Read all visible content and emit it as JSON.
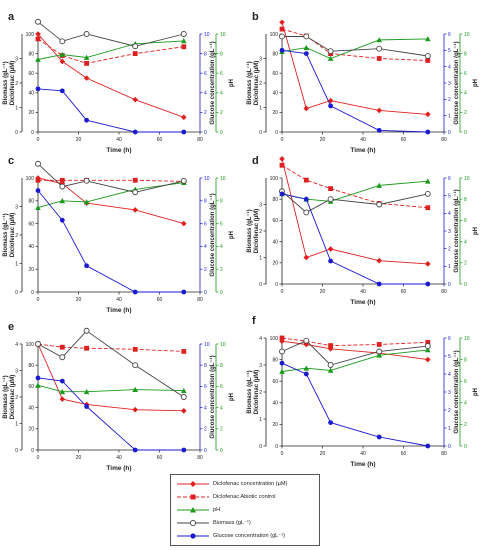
{
  "chart_data": [
    {
      "panel": "a",
      "type": "line",
      "xlabel": "Time (h)",
      "ylabel_left_outer": "Biomass (gL⁻¹)",
      "ylabel_left_inner": "Diclofenac (µM)",
      "ylabel_right_inner": "Glucose concentration (gL⁻¹)",
      "ylabel_right_outer": "pH",
      "xlim": [
        0,
        80
      ],
      "xticks": [
        "0",
        "20",
        "40",
        "60",
        "80"
      ],
      "ylim_biomass": [
        0,
        4
      ],
      "ylim_diclofenac": [
        0,
        100
      ],
      "ylim_glucose": [
        0,
        10
      ],
      "ylim_ph": [
        0,
        10
      ],
      "ticks_biomass": [
        "0",
        "1",
        "2",
        "3"
      ],
      "ticks_diclofenac": [
        "0",
        "20",
        "40",
        "60",
        "80",
        "100"
      ],
      "ticks_glucose": [
        "0",
        "2",
        "4",
        "6",
        "8",
        "10"
      ],
      "ticks_ph": [
        "0",
        "2",
        "4",
        "6",
        "8",
        "10"
      ],
      "series": [
        {
          "name": "Diclofenac concentration (µM)",
          "axis": "diclofenac",
          "x": [
            0,
            12,
            24,
            48,
            72
          ],
          "y": [
            100,
            72,
            55,
            33,
            15
          ]
        },
        {
          "name": "Diclofenac Abiotic control",
          "axis": "diclofenac",
          "x": [
            0,
            12,
            24,
            48,
            72
          ],
          "y": [
            95,
            78,
            70,
            80,
            87
          ]
        },
        {
          "name": "pH",
          "axis": "ph",
          "x": [
            0,
            12,
            24,
            48,
            72
          ],
          "y": [
            7.4,
            7.9,
            7.6,
            9.0,
            9.3
          ]
        },
        {
          "name": "Biomass (gL⁻¹)",
          "axis": "biomass",
          "x": [
            0,
            12,
            24,
            48,
            72
          ],
          "y": [
            4.5,
            3.7,
            4.0,
            3.5,
            4.0
          ]
        },
        {
          "name": "Glucose concentration (gL⁻¹)",
          "axis": "glucose",
          "x": [
            0,
            12,
            24,
            48,
            72
          ],
          "y": [
            4.4,
            4.2,
            1.2,
            0,
            0
          ]
        }
      ]
    },
    {
      "panel": "b",
      "type": "line",
      "xlabel": "Time (h)",
      "ylabel_left_outer": "Biomass (gL⁻¹)",
      "ylabel_left_inner": "Diclofenac (µM)",
      "ylabel_right_inner": "Glucose concentration (gL⁻¹)",
      "ylabel_right_outer": "pH",
      "xlim": [
        0,
        80
      ],
      "xticks": [
        "0",
        "20",
        "40",
        "60",
        "80"
      ],
      "ylim_biomass": [
        0,
        4
      ],
      "ylim_diclofenac": [
        0,
        100
      ],
      "ylim_glucose": [
        0,
        6
      ],
      "ylim_ph": [
        0,
        10
      ],
      "ticks_biomass": [
        "0",
        "1",
        "2",
        "3"
      ],
      "ticks_diclofenac": [
        "0",
        "20",
        "40",
        "60",
        "80",
        "100"
      ],
      "ticks_glucose": [
        "0",
        "1",
        "2",
        "3",
        "4",
        "5",
        "6"
      ],
      "ticks_ph": [
        "0",
        "2",
        "4",
        "6",
        "8",
        "10"
      ],
      "series": [
        {
          "name": "Diclofenac concentration (µM)",
          "axis": "diclofenac",
          "x": [
            0,
            12,
            24,
            48,
            72
          ],
          "y": [
            112,
            24,
            32,
            22,
            18
          ]
        },
        {
          "name": "Diclofenac Abiotic control",
          "axis": "diclofenac",
          "x": [
            0,
            12,
            24,
            48,
            72
          ],
          "y": [
            105,
            98,
            80,
            75,
            73
          ]
        },
        {
          "name": "pH",
          "axis": "ph",
          "x": [
            0,
            12,
            24,
            48,
            72
          ],
          "y": [
            8.2,
            8.6,
            7.5,
            9.4,
            9.5
          ]
        },
        {
          "name": "Biomass (gL⁻¹)",
          "axis": "biomass",
          "x": [
            0,
            12,
            24,
            48,
            72
          ],
          "y": [
            3.9,
            3.9,
            3.3,
            3.4,
            3.1
          ]
        },
        {
          "name": "Glucose concentration (gL⁻¹)",
          "axis": "glucose",
          "x": [
            0,
            12,
            24,
            48,
            72
          ],
          "y": [
            5.0,
            4.8,
            1.6,
            0.1,
            0
          ]
        }
      ]
    },
    {
      "panel": "c",
      "type": "line",
      "xlabel": "Time (h)",
      "ylabel_left_outer": "Biomass (gL⁻¹)",
      "ylabel_left_inner": "Diclofenac (µM)",
      "ylabel_right_inner": "Glucose concentration (gL⁻¹)",
      "ylabel_right_outer": "pH",
      "xlim": [
        0,
        80
      ],
      "xticks": [
        "0",
        "20",
        "40",
        "60",
        "80"
      ],
      "ylim_biomass": [
        0,
        4
      ],
      "ylim_diclofenac": [
        0,
        100
      ],
      "ylim_glucose": [
        0,
        10
      ],
      "ylim_ph": [
        0,
        10
      ],
      "ticks_biomass": [
        "0",
        "1",
        "2",
        "3"
      ],
      "ticks_diclofenac": [
        "0",
        "20",
        "40",
        "60",
        "80",
        "100"
      ],
      "ticks_glucose": [
        "0",
        "2",
        "4",
        "6",
        "8",
        "10"
      ],
      "ticks_ph": [
        "0",
        "2",
        "4",
        "6",
        "8",
        "10"
      ],
      "series": [
        {
          "name": "Diclofenac concentration (µM)",
          "axis": "diclofenac",
          "x": [
            0,
            12,
            24,
            48,
            72
          ],
          "y": [
            100,
            95,
            78,
            72,
            60
          ]
        },
        {
          "name": "Diclofenac Abiotic control",
          "axis": "diclofenac",
          "x": [
            0,
            12,
            24,
            48,
            72
          ],
          "y": [
            98,
            98,
            98,
            98,
            97
          ]
        },
        {
          "name": "pH",
          "axis": "ph",
          "x": [
            0,
            12,
            24,
            48,
            72
          ],
          "y": [
            7.4,
            8.0,
            7.9,
            9.0,
            9.6
          ]
        },
        {
          "name": "Biomass (gL⁻¹)",
          "axis": "biomass",
          "x": [
            0,
            12,
            24,
            48,
            72
          ],
          "y": [
            4.5,
            3.7,
            3.9,
            3.5,
            3.9
          ]
        },
        {
          "name": "Glucose concentration (gL⁻¹)",
          "axis": "glucose",
          "x": [
            0,
            12,
            24,
            48,
            72
          ],
          "y": [
            8.9,
            6.3,
            2.3,
            0,
            0
          ]
        }
      ]
    },
    {
      "panel": "d",
      "type": "line",
      "xlabel": "Time (h)",
      "ylabel_left_outer": "Biomass (gL⁻¹)",
      "ylabel_left_inner": "Diclofenac (µM)",
      "ylabel_right_inner": "Glucose concentration (gL⁻¹)",
      "ylabel_right_outer": "pH",
      "xlim": [
        0,
        80
      ],
      "xticks": [
        "0",
        "20",
        "40",
        "60",
        "80"
      ],
      "ylim_biomass": [
        0,
        4
      ],
      "ylim_diclofenac": [
        0,
        100
      ],
      "ylim_glucose": [
        0,
        6
      ],
      "ylim_ph": [
        0,
        10
      ],
      "ticks_biomass": [
        "0",
        "1",
        "2",
        "3"
      ],
      "ticks_diclofenac": [
        "0",
        "20",
        "40",
        "60",
        "80",
        "100"
      ],
      "ticks_glucose": [
        "0",
        "1",
        "2",
        "3",
        "4",
        "5",
        "6"
      ],
      "ticks_ph": [
        "0",
        "2",
        "4",
        "6",
        "8",
        "10"
      ],
      "series": [
        {
          "name": "Diclofenac concentration (µM)",
          "axis": "diclofenac",
          "x": [
            0,
            12,
            24,
            48,
            72
          ],
          "y": [
            118,
            25,
            33,
            22,
            19
          ]
        },
        {
          "name": "Diclofenac Abiotic control",
          "axis": "diclofenac",
          "x": [
            0,
            12,
            24,
            48,
            72
          ],
          "y": [
            112,
            98,
            90,
            76,
            72
          ]
        },
        {
          "name": "pH",
          "axis": "ph",
          "x": [
            0,
            12,
            24,
            48,
            72
          ],
          "y": [
            8.5,
            8.0,
            7.8,
            9.3,
            9.7
          ]
        },
        {
          "name": "Biomass (gL⁻¹)",
          "axis": "biomass",
          "x": [
            0,
            12,
            24,
            48,
            72
          ],
          "y": [
            3.5,
            2.7,
            3.2,
            3.0,
            3.4
          ]
        },
        {
          "name": "Glucose concentration (gL⁻¹)",
          "axis": "glucose",
          "x": [
            0,
            12,
            24,
            48,
            72
          ],
          "y": [
            5.1,
            4.8,
            1.3,
            0,
            0
          ]
        }
      ]
    },
    {
      "panel": "e",
      "type": "line",
      "xlabel": "Time (h)",
      "ylabel_left_outer": "Biomass (gL⁻¹)",
      "ylabel_left_inner": "Diclofenac (µM)",
      "ylabel_right_inner": "Glucose concentration (gL⁻¹)",
      "ylabel_right_outer": "pH",
      "xlim": [
        0,
        80
      ],
      "xticks": [
        "0",
        "20",
        "40",
        "60",
        "80"
      ],
      "ylim_biomass": [
        0,
        4
      ],
      "ylim_diclofenac": [
        0,
        100
      ],
      "ylim_glucose": [
        0,
        10
      ],
      "ylim_ph": [
        0,
        10
      ],
      "ticks_biomass": [
        "0",
        "1",
        "2",
        "3",
        "4"
      ],
      "ticks_diclofenac": [
        "0",
        "20",
        "40",
        "60",
        "80",
        "100"
      ],
      "ticks_glucose": [
        "0",
        "2",
        "4",
        "6",
        "8",
        "10"
      ],
      "ticks_ph": [
        "0",
        "2",
        "4",
        "6",
        "8",
        "10"
      ],
      "series": [
        {
          "name": "Diclofenac concentration (µM)",
          "axis": "diclofenac",
          "x": [
            0,
            12,
            24,
            48,
            72
          ],
          "y": [
            100,
            48,
            43,
            38,
            37
          ]
        },
        {
          "name": "Diclofenac Abiotic control",
          "axis": "diclofenac",
          "x": [
            0,
            12,
            24,
            48,
            72
          ],
          "y": [
            100,
            97,
            96,
            95,
            93
          ]
        },
        {
          "name": "pH",
          "axis": "ph",
          "x": [
            0,
            12,
            24,
            48,
            72
          ],
          "y": [
            6.1,
            5.5,
            5.5,
            5.7,
            5.6
          ]
        },
        {
          "name": "Biomass (gL⁻¹)",
          "axis": "biomass",
          "x": [
            0,
            12,
            24,
            48,
            72
          ],
          "y": [
            4.0,
            3.5,
            4.5,
            3.2,
            2.0
          ]
        },
        {
          "name": "Glucose concentration (gL⁻¹)",
          "axis": "glucose",
          "x": [
            0,
            12,
            24,
            48,
            72
          ],
          "y": [
            6.8,
            6.5,
            4.1,
            0,
            0
          ]
        }
      ]
    },
    {
      "panel": "f",
      "type": "line",
      "xlabel": "Time (h)",
      "ylabel_left_outer": "Biomass (gL⁻¹)",
      "ylabel_left_inner": "Diclofenac (µM)",
      "ylabel_right_inner": "Glucose concentration (gL⁻¹)",
      "ylabel_right_outer": "pH",
      "xlim": [
        0,
        80
      ],
      "xticks": [
        "0",
        "20",
        "40",
        "60",
        "80"
      ],
      "ylim_biomass": [
        0,
        4
      ],
      "ylim_diclofenac": [
        0,
        100
      ],
      "ylim_glucose": [
        0,
        6
      ],
      "ylim_ph": [
        0,
        10
      ],
      "ticks_biomass": [
        "0",
        "1",
        "2",
        "3",
        "4"
      ],
      "ticks_diclofenac": [
        "0",
        "20",
        "40",
        "60",
        "80",
        "100"
      ],
      "ticks_glucose": [
        "0",
        "1",
        "2",
        "3",
        "4",
        "5",
        "6"
      ],
      "ticks_ph": [
        "0",
        "2",
        "4",
        "6",
        "8",
        "10"
      ],
      "series": [
        {
          "name": "Diclofenac concentration (µM)",
          "axis": "diclofenac",
          "x": [
            0,
            12,
            24,
            48,
            72
          ],
          "y": [
            97,
            94,
            90,
            86,
            80
          ]
        },
        {
          "name": "Diclofenac Abiotic control",
          "axis": "diclofenac",
          "x": [
            0,
            12,
            24,
            48,
            72
          ],
          "y": [
            100,
            97,
            93,
            94,
            96
          ]
        },
        {
          "name": "pH",
          "axis": "ph",
          "x": [
            0,
            12,
            24,
            48,
            72
          ],
          "y": [
            6.9,
            7.2,
            7.0,
            8.4,
            8.9
          ]
        },
        {
          "name": "Biomass (gL⁻¹)",
          "axis": "biomass",
          "x": [
            0,
            12,
            24,
            48,
            72
          ],
          "y": [
            3.5,
            3.9,
            3.0,
            3.5,
            3.7
          ]
        },
        {
          "name": "Glucose concentration (gL⁻¹)",
          "axis": "glucose",
          "x": [
            0,
            12,
            24,
            48,
            72
          ],
          "y": [
            4.6,
            4.0,
            1.3,
            0.5,
            0
          ]
        }
      ]
    }
  ],
  "legend": [
    {
      "label": "Diclofenac concentration (µM)",
      "color": "#e02020",
      "marker": "diamond",
      "dashed": false
    },
    {
      "label": "Diclofenac Abiotic control",
      "color": "#e02020",
      "marker": "square",
      "dashed": true
    },
    {
      "label": "pH",
      "color": "#1a9a1a",
      "marker": "triangle",
      "dashed": false
    },
    {
      "label": "Biomass (gL⁻¹)",
      "color": "#444444",
      "marker": "circle-open",
      "dashed": false
    },
    {
      "label": "Glucose concentration (gL⁻¹)",
      "color": "#1a1ad0",
      "marker": "circle",
      "dashed": false
    }
  ],
  "colors": {
    "diclofenac": "#e02020",
    "ph": "#1a9a1a",
    "biomass": "#444444",
    "glucose": "#1a1ad0",
    "axis_left": "#222222"
  }
}
